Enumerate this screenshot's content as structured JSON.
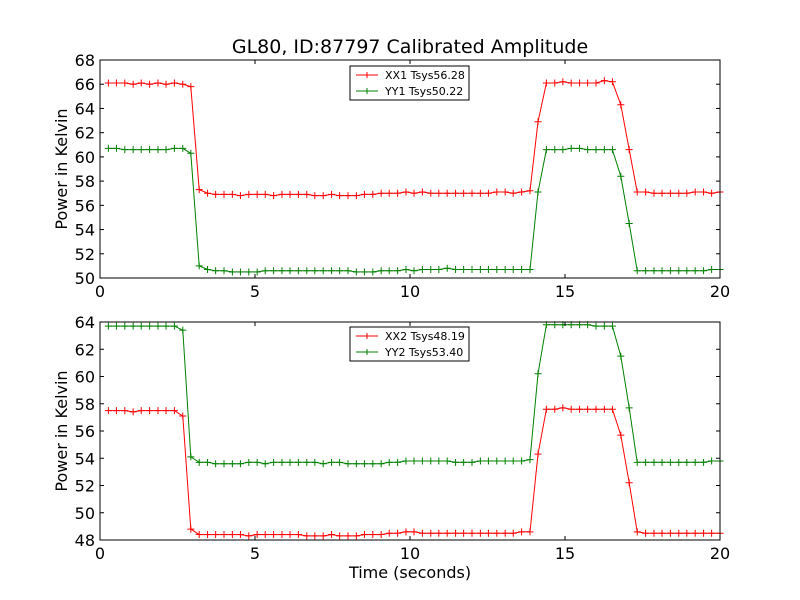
{
  "figure": {
    "title": "GL80, ID:87797 Calibrated Amplitude",
    "xlabel": "Time (seconds)"
  },
  "chart_data": [
    {
      "type": "line",
      "ylabel": "Power in Kelvin",
      "xlim": [
        0,
        20
      ],
      "ylim": [
        50,
        68
      ],
      "xticks": [
        0,
        5,
        10,
        15,
        20
      ],
      "yticks": [
        50,
        52,
        54,
        56,
        58,
        60,
        62,
        64,
        66,
        68
      ],
      "grid": false,
      "legend_position": "top-center",
      "x": [
        0.27,
        0.53,
        0.8,
        1.07,
        1.33,
        1.6,
        1.87,
        2.13,
        2.4,
        2.67,
        2.93,
        3.2,
        3.47,
        3.73,
        4.0,
        4.27,
        4.53,
        4.8,
        5.07,
        5.33,
        5.6,
        5.87,
        6.13,
        6.4,
        6.67,
        6.93,
        7.2,
        7.47,
        7.73,
        8.0,
        8.27,
        8.53,
        8.8,
        9.07,
        9.33,
        9.6,
        9.87,
        10.13,
        10.4,
        10.67,
        10.93,
        11.2,
        11.47,
        11.73,
        12.0,
        12.27,
        12.53,
        12.8,
        13.07,
        13.33,
        13.6,
        13.87,
        14.13,
        14.4,
        14.67,
        14.93,
        15.2,
        15.47,
        15.73,
        16.0,
        16.27,
        16.53,
        16.8,
        17.07,
        17.33,
        17.6,
        17.87,
        18.13,
        18.4,
        18.67,
        18.93,
        19.2,
        19.47,
        19.73,
        20.0
      ],
      "series": [
        {
          "name": "XX1 Tsys56.28",
          "color": "#ff0000",
          "values": [
            66.1,
            66.1,
            66.1,
            66.0,
            66.1,
            66.0,
            66.1,
            66.0,
            66.1,
            66.0,
            65.8,
            57.3,
            57.0,
            56.9,
            56.9,
            56.9,
            56.8,
            56.9,
            56.9,
            56.9,
            56.8,
            56.9,
            56.9,
            56.9,
            56.9,
            56.8,
            56.8,
            56.9,
            56.8,
            56.8,
            56.8,
            56.9,
            56.9,
            57.0,
            57.0,
            57.0,
            57.1,
            57.0,
            57.1,
            57.0,
            57.0,
            57.0,
            57.0,
            57.0,
            57.0,
            57.0,
            57.0,
            57.1,
            57.1,
            57.0,
            57.1,
            57.2,
            62.9,
            66.1,
            66.1,
            66.2,
            66.1,
            66.1,
            66.1,
            66.1,
            66.3,
            66.2,
            64.3,
            60.6,
            57.1,
            57.1,
            57.0,
            57.0,
            57.0,
            57.0,
            57.0,
            57.1,
            57.1,
            57.0,
            57.1
          ]
        },
        {
          "name": "YY1 Tsys50.22",
          "color": "#008000",
          "values": [
            60.7,
            60.7,
            60.6,
            60.6,
            60.6,
            60.6,
            60.6,
            60.6,
            60.7,
            60.7,
            60.3,
            51.0,
            50.7,
            50.6,
            50.6,
            50.5,
            50.5,
            50.5,
            50.5,
            50.6,
            50.6,
            50.6,
            50.6,
            50.6,
            50.6,
            50.6,
            50.6,
            50.6,
            50.6,
            50.6,
            50.5,
            50.5,
            50.5,
            50.6,
            50.6,
            50.6,
            50.7,
            50.6,
            50.7,
            50.7,
            50.7,
            50.8,
            50.7,
            50.7,
            50.7,
            50.7,
            50.7,
            50.7,
            50.7,
            50.7,
            50.7,
            50.7,
            57.1,
            60.6,
            60.6,
            60.6,
            60.7,
            60.7,
            60.6,
            60.6,
            60.6,
            60.6,
            58.4,
            54.5,
            50.6,
            50.6,
            50.6,
            50.6,
            50.6,
            50.6,
            50.6,
            50.6,
            50.6,
            50.7,
            50.7
          ]
        }
      ]
    },
    {
      "type": "line",
      "ylabel": "Power in Kelvin",
      "xlabel": "Time (seconds)",
      "xlim": [
        0,
        20
      ],
      "ylim": [
        48,
        64
      ],
      "xticks": [
        0,
        5,
        10,
        15,
        20
      ],
      "yticks": [
        48,
        50,
        52,
        54,
        56,
        58,
        60,
        62,
        64
      ],
      "grid": false,
      "legend_position": "top-center",
      "x": [
        0.27,
        0.53,
        0.8,
        1.07,
        1.33,
        1.6,
        1.87,
        2.13,
        2.4,
        2.67,
        2.93,
        3.2,
        3.47,
        3.73,
        4.0,
        4.27,
        4.53,
        4.8,
        5.07,
        5.33,
        5.6,
        5.87,
        6.13,
        6.4,
        6.67,
        6.93,
        7.2,
        7.47,
        7.73,
        8.0,
        8.27,
        8.53,
        8.8,
        9.07,
        9.33,
        9.6,
        9.87,
        10.13,
        10.4,
        10.67,
        10.93,
        11.2,
        11.47,
        11.73,
        12.0,
        12.27,
        12.53,
        12.8,
        13.07,
        13.33,
        13.6,
        13.87,
        14.13,
        14.4,
        14.67,
        14.93,
        15.2,
        15.47,
        15.73,
        16.0,
        16.27,
        16.53,
        16.8,
        17.07,
        17.33,
        17.6,
        17.87,
        18.13,
        18.4,
        18.67,
        18.93,
        19.2,
        19.47,
        19.73,
        20.0
      ],
      "series": [
        {
          "name": "XX2 Tsys48.19",
          "color": "#ff0000",
          "values": [
            57.5,
            57.5,
            57.5,
            57.4,
            57.5,
            57.5,
            57.5,
            57.5,
            57.5,
            57.1,
            48.8,
            48.4,
            48.4,
            48.4,
            48.4,
            48.4,
            48.4,
            48.3,
            48.4,
            48.4,
            48.4,
            48.4,
            48.4,
            48.4,
            48.3,
            48.3,
            48.3,
            48.4,
            48.3,
            48.3,
            48.3,
            48.4,
            48.4,
            48.4,
            48.5,
            48.5,
            48.6,
            48.6,
            48.5,
            48.5,
            48.5,
            48.5,
            48.5,
            48.5,
            48.5,
            48.5,
            48.5,
            48.5,
            48.5,
            48.5,
            48.6,
            48.6,
            54.3,
            57.6,
            57.6,
            57.7,
            57.6,
            57.6,
            57.6,
            57.6,
            57.6,
            57.6,
            55.7,
            52.2,
            48.6,
            48.5,
            48.5,
            48.5,
            48.5,
            48.5,
            48.5,
            48.5,
            48.5,
            48.5,
            48.5
          ]
        },
        {
          "name": "YY2 Tsys53.40",
          "color": "#008000",
          "values": [
            63.7,
            63.7,
            63.7,
            63.7,
            63.7,
            63.7,
            63.7,
            63.7,
            63.7,
            63.4,
            54.1,
            53.7,
            53.7,
            53.6,
            53.6,
            53.6,
            53.6,
            53.7,
            53.7,
            53.6,
            53.7,
            53.7,
            53.7,
            53.7,
            53.7,
            53.7,
            53.6,
            53.7,
            53.7,
            53.6,
            53.6,
            53.6,
            53.6,
            53.6,
            53.7,
            53.7,
            53.8,
            53.8,
            53.8,
            53.8,
            53.8,
            53.8,
            53.7,
            53.7,
            53.7,
            53.8,
            53.8,
            53.8,
            53.8,
            53.8,
            53.8,
            53.9,
            60.2,
            63.8,
            63.8,
            63.8,
            63.8,
            63.8,
            63.8,
            63.7,
            63.7,
            63.7,
            61.5,
            57.7,
            53.7,
            53.7,
            53.7,
            53.7,
            53.7,
            53.7,
            53.7,
            53.7,
            53.7,
            53.8,
            53.8
          ]
        }
      ]
    }
  ]
}
